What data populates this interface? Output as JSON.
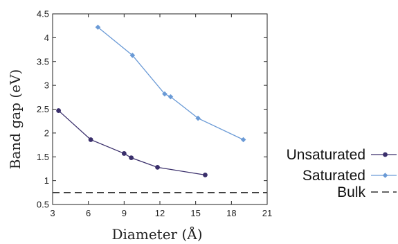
{
  "chart_data": {
    "type": "line",
    "xlabel": "Diameter (Å)",
    "ylabel": "Band gap (eV)",
    "xlim": [
      3,
      21
    ],
    "ylim": [
      0.5,
      4.5
    ],
    "xticks": [
      "3",
      "6",
      "9",
      "12",
      "15",
      "18",
      "21"
    ],
    "yticks": [
      "0.5",
      "1",
      "1.5",
      "2",
      "2.5",
      "3",
      "3.5",
      "4",
      "4.5"
    ],
    "legend_position": "right",
    "grid": false,
    "series": [
      {
        "name": "Unsaturated",
        "color": "#3a2f6b",
        "marker": "circle",
        "x": [
          3.5,
          6.2,
          9.0,
          9.6,
          11.8,
          15.8
        ],
        "y": [
          2.47,
          1.86,
          1.57,
          1.48,
          1.28,
          1.12
        ]
      },
      {
        "name": "Saturated",
        "color": "#6a9ad6",
        "marker": "diamond",
        "x": [
          6.8,
          9.7,
          12.4,
          12.9,
          15.2,
          19.0
        ],
        "y": [
          4.22,
          3.63,
          2.82,
          2.76,
          2.31,
          1.86
        ]
      },
      {
        "name": "Bulk",
        "color": "#333333",
        "style": "dashed",
        "y": 0.75
      }
    ]
  }
}
